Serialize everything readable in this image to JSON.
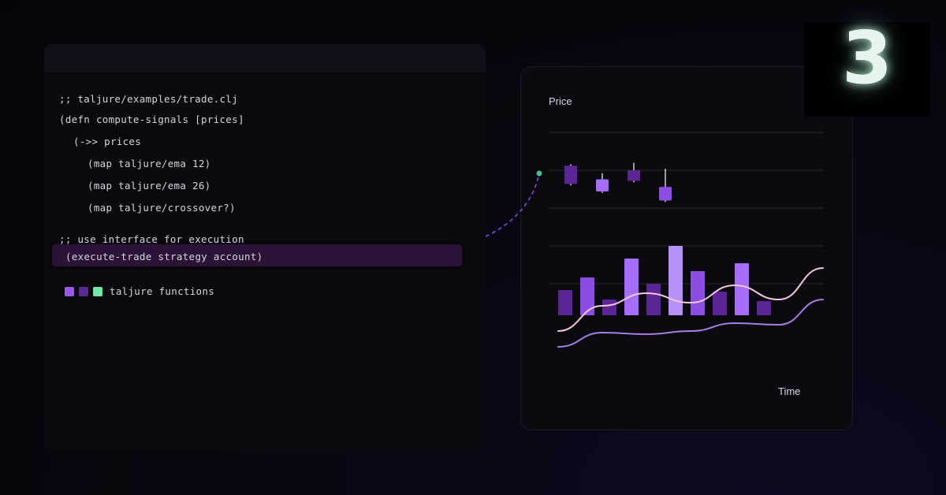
{
  "code": {
    "lines": [
      ";; taljure/examples/trade.clj",
      "(defn compute-signals [prices]",
      "(->> prices",
      "(map taljure/ema 12)",
      "(map taljure/ema 26)",
      "(map taljure/crossover?)",
      ";; use interface for execution",
      "(execute-trade strategy account)"
    ]
  },
  "legend": {
    "label": "taljure functions",
    "colors": [
      "#9a5ae6",
      "#5a2894",
      "#6ee7a8"
    ]
  },
  "chart": {
    "ylabel": "Price",
    "xlabel": "Time",
    "colors": {
      "candle_dark": "#5b2593",
      "candle_light": "#a56ef7",
      "bar_dark": "#5b2593",
      "bar_mid": "#8b4ee0",
      "bar_light": "#b592f5",
      "line_pink": "#f2c6de",
      "line_violet": "#a37ee0",
      "connector": "#7e4bd6",
      "connector_dot": "#4fb890"
    }
  },
  "chart_data": {
    "type": "bar",
    "ylabel": "Price",
    "xlabel": "Time",
    "candles": [
      {
        "open": 0.78,
        "close": 0.66,
        "high": 0.79,
        "low": 0.65
      },
      {
        "open": 0.61,
        "close": 0.69,
        "high": 0.73,
        "low": 0.6
      },
      {
        "open": 0.75,
        "close": 0.68,
        "high": 0.8,
        "low": 0.67
      },
      {
        "open": 0.64,
        "close": 0.55,
        "high": 0.76,
        "low": 0.54
      }
    ],
    "bars": [
      32,
      48,
      20,
      72,
      40,
      88,
      56,
      30,
      66,
      18
    ],
    "series": [
      {
        "values": [
          -20,
          12,
          28,
          16,
          38,
          20,
          60
        ]
      },
      {
        "values": [
          -40,
          -22,
          -24,
          -20,
          -10,
          -12,
          20
        ]
      }
    ]
  },
  "badge": {
    "number": "3"
  }
}
